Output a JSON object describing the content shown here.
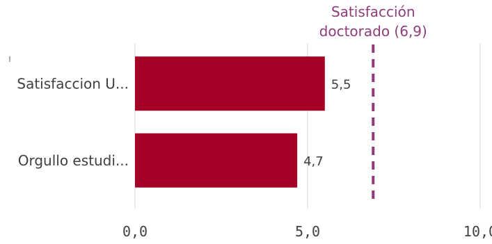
{
  "chart_data": {
    "type": "bar",
    "orientation": "horizontal",
    "categories": [
      "Satisfaccion U...",
      "Orgullo estudi..."
    ],
    "values": [
      5.5,
      4.7
    ],
    "value_labels": [
      "5,5",
      "4,7"
    ],
    "xlim": [
      0,
      10
    ],
    "ticks": [
      0,
      5,
      10
    ],
    "tick_labels": [
      "0,0",
      "5,0",
      "10,0"
    ],
    "grid": true,
    "reference_line": {
      "value": 6.9,
      "label_line1": "Satisfacción",
      "label_line2": "doctorado (6,9)",
      "style": "dashed"
    },
    "colors": {
      "bar": "#a50026",
      "reference": "#8e3d7a",
      "grid": "#d9d9d9",
      "text": "#404040"
    }
  }
}
